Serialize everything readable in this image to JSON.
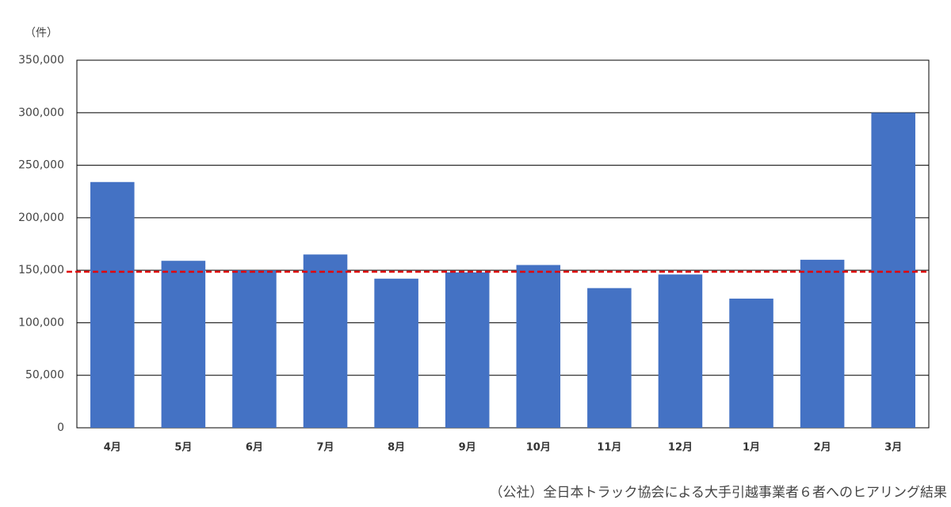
{
  "chart_data": {
    "type": "bar",
    "y_unit_label": "（件）",
    "source": "（公社）全日本トラック協会による大手引越事業者６者へのヒアリング結果",
    "categories": [
      "4月",
      "5月",
      "6月",
      "7月",
      "8月",
      "9月",
      "10月",
      "11月",
      "12月",
      "1月",
      "2月",
      "3月"
    ],
    "values": [
      234000,
      159000,
      150000,
      165000,
      142000,
      148000,
      155000,
      133000,
      146000,
      123000,
      160000,
      300000
    ],
    "color": "#4472c4",
    "reference_line": {
      "value": 148600,
      "color": "#e00000"
    },
    "ylim": [
      0,
      350000
    ],
    "yticks": [
      0,
      {
        "value": 50000,
        "label": "50,000"
      },
      {
        "value": 100000,
        "label": "100,000"
      },
      {
        "value": 150000,
        "label": "150,000"
      },
      {
        "value": 200000,
        "label": "200,000"
      },
      {
        "value": 250000,
        "label": "250,000"
      },
      {
        "value": 300000,
        "label": "300,000"
      },
      {
        "value": 350000,
        "label": "350,000"
      }
    ],
    "grid": true
  }
}
